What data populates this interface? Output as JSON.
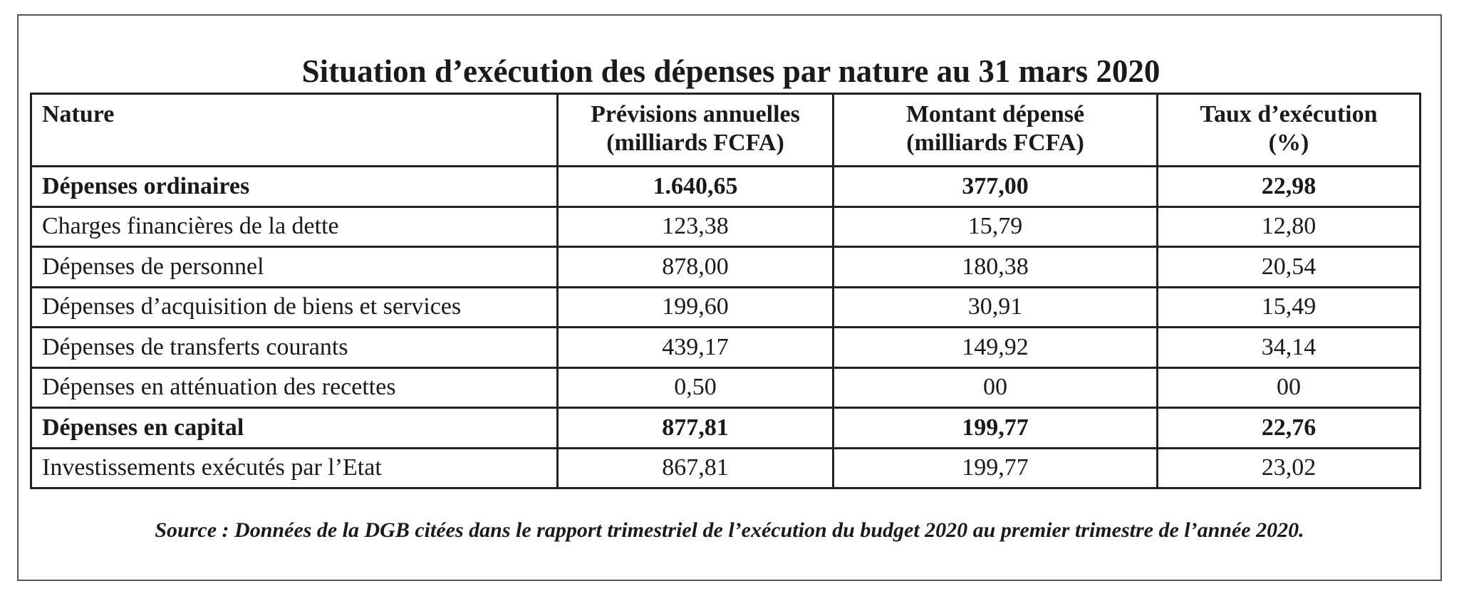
{
  "chart_data": {
    "type": "table",
    "title": "Situation d’exécution des dépenses par nature au 31 mars 2020",
    "columns": [
      "Nature",
      "Prévisions annuelles\n(milliards FCFA)",
      "Montant dépensé\n(milliards FCFA)",
      "Taux d’exécution\n(%)"
    ],
    "rows": [
      {
        "nature": "Dépenses ordinaires",
        "previsions": "1.640,65",
        "montant": "377,00",
        "taux": "22,98",
        "bold": true
      },
      {
        "nature": "Charges financières de la dette",
        "previsions": "123,38",
        "montant": "15,79",
        "taux": "12,80",
        "bold": false
      },
      {
        "nature": "Dépenses de personnel",
        "previsions": "878,00",
        "montant": "180,38",
        "taux": "20,54",
        "bold": false
      },
      {
        "nature": "Dépenses d’acquisition de biens et services",
        "previsions": "199,60",
        "montant": "30,91",
        "taux": "15,49",
        "bold": false
      },
      {
        "nature": "Dépenses de transferts courants",
        "previsions": "439,17",
        "montant": "149,92",
        "taux": "34,14",
        "bold": false
      },
      {
        "nature": "Dépenses en atténuation des recettes",
        "previsions": "0,50",
        "montant": "00",
        "taux": "00",
        "bold": false
      },
      {
        "nature": "Dépenses en capital",
        "previsions": "877,81",
        "montant": "199,77",
        "taux": "22,76",
        "bold": true
      },
      {
        "nature": "Investissements exécutés par l’Etat",
        "previsions": "867,81",
        "montant": "199,77",
        "taux": "23,02",
        "bold": false
      }
    ],
    "source": "Source : Données de la DGB citées dans le rapport trimestriel de l’exécution du budget 2020 au premier trimestre de l’année 2020."
  }
}
